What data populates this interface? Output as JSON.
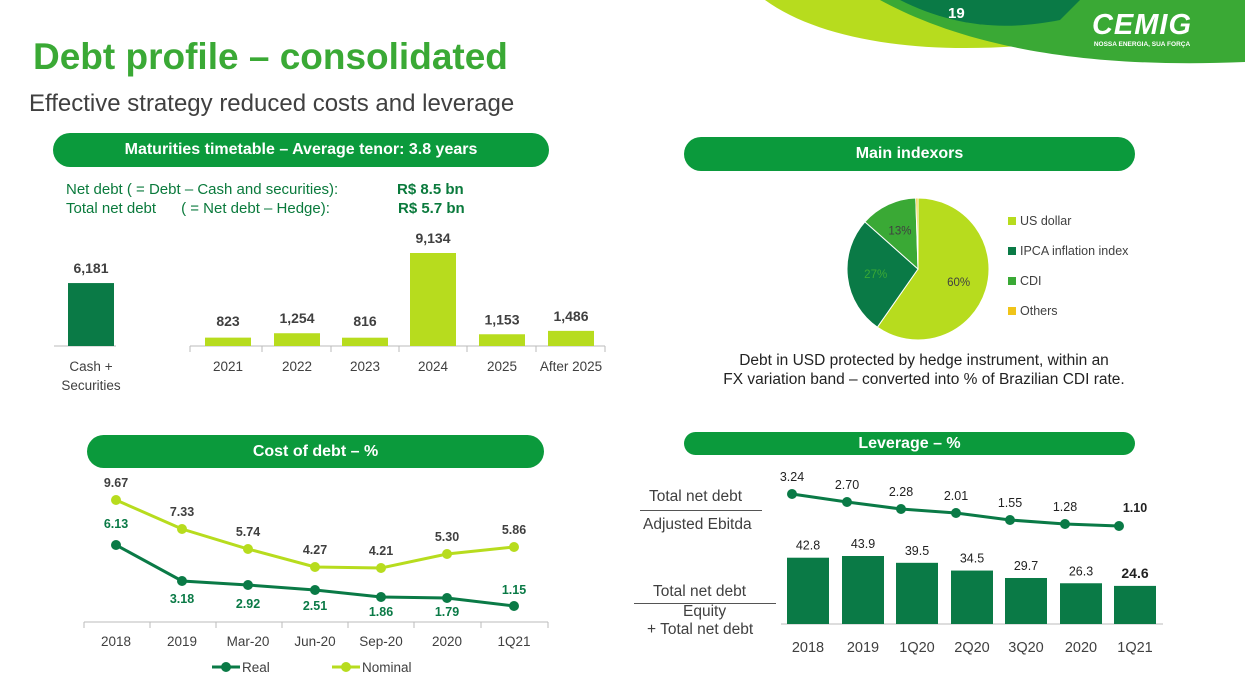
{
  "page_number": "19",
  "logo": {
    "name": "CEMIG",
    "tagline": "NOSSA ENERGIA, SUA FORÇA"
  },
  "title": "Debt profile – consolidated",
  "subtitle": "Effective strategy reduced costs and leverage",
  "colors": {
    "dark_green": "#0a7a46",
    "light_green": "#b7dc1e",
    "header_green": "#0b9a3c",
    "mid_green": "#3aa935",
    "yellow": "#f0c419"
  },
  "maturities": {
    "header": "Maturities timetable – Average tenor: 3.8 years",
    "net_debt_label": "Net debt ( = Debt – Cash and securities):",
    "net_debt_value": "R$ 8.5 bn",
    "total_net_debt_label": "Total net debt      ( = Net debt – Hedge):",
    "total_net_debt_value": "R$ 5.7 bn"
  },
  "indexors": {
    "header": "Main indexors",
    "note_line1": "Debt in USD protected by hedge instrument, within an",
    "note_line2": "FX variation band – converted into % of Brazilian CDI rate."
  },
  "cost": {
    "header": "Cost of debt – %"
  },
  "leverage": {
    "header": "Leverage – %",
    "ratio1_numerator": "Total net debt",
    "ratio1_denominator": "Adjusted Ebitda",
    "ratio2_numerator": "Total net debt",
    "ratio2_denominator_line1": "Equity",
    "ratio2_denominator_line2": "+ Total net debt"
  },
  "chart_data": [
    {
      "id": "maturities",
      "type": "bar",
      "categories": [
        "Cash + Securities",
        "2021",
        "2022",
        "2023",
        "2024",
        "2025",
        "After 2025"
      ],
      "values": [
        6181,
        823,
        1254,
        816,
        9134,
        1153,
        1486
      ],
      "value_labels": [
        "6,181",
        "823",
        "1,254",
        "816",
        "9,134",
        "1,153",
        "1,486"
      ],
      "category_labels": [
        [
          "Cash +",
          "Securities"
        ],
        [
          "2021"
        ],
        [
          "2022"
        ],
        [
          "2023"
        ],
        [
          "2024"
        ],
        [
          "2025"
        ],
        [
          "After 2025"
        ]
      ],
      "colors": [
        "#0a7a46",
        "#b7dc1e",
        "#b7dc1e",
        "#b7dc1e",
        "#b7dc1e",
        "#b7dc1e",
        "#b7dc1e"
      ]
    },
    {
      "id": "indexors",
      "type": "pie",
      "labels": [
        "US dollar",
        "IPCA inflation index",
        "CDI",
        "Others"
      ],
      "values": [
        60,
        27,
        13,
        0.5
      ],
      "slice_labels": [
        "60%",
        "27%",
        "13%",
        ""
      ],
      "colors": [
        "#b7dc1e",
        "#0a7a46",
        "#3aa935",
        "#f0c419"
      ],
      "legend": "right"
    },
    {
      "id": "cost_of_debt",
      "type": "line",
      "categories": [
        "2018",
        "2019",
        "Mar-20",
        "Jun-20",
        "Sep-20",
        "2020",
        "1Q21"
      ],
      "series": [
        {
          "name": "Real",
          "values": [
            6.13,
            3.18,
            2.92,
            2.51,
            1.86,
            1.79,
            1.15
          ],
          "labels": [
            "6.13",
            "3.18",
            "2.92",
            "2.51",
            "1.86",
            "1.79",
            "1.15"
          ],
          "color": "#0a7a46"
        },
        {
          "name": "Nominal",
          "values": [
            9.67,
            7.33,
            5.74,
            4.27,
            4.21,
            5.3,
            5.86
          ],
          "labels": [
            "9.67",
            "7.33",
            "5.74",
            "4.27",
            "4.21",
            "5.30",
            "5.86"
          ],
          "color": "#b7dc1e"
        }
      ],
      "legend": "bottom"
    },
    {
      "id": "leverage",
      "type": "bar",
      "categories": [
        "2018",
        "2019",
        "1Q20",
        "2Q20",
        "3Q20",
        "2020",
        "1Q21"
      ],
      "series": [
        {
          "name": "Total net debt / (Equity + Total net debt)",
          "values": [
            42.8,
            43.9,
            39.5,
            34.5,
            29.7,
            26.3,
            24.6
          ],
          "labels": [
            "42.8",
            "43.9",
            "39.5",
            "34.5",
            "29.7",
            "26.3",
            "24.6"
          ],
          "color": "#0a7a46"
        },
        {
          "name": "Total net debt / Adjusted Ebitda",
          "type": "line",
          "values": [
            3.24,
            2.7,
            2.28,
            2.01,
            1.55,
            1.28,
            1.1
          ],
          "labels": [
            "3.24",
            "2.70",
            "2.28",
            "2.01",
            "1.55",
            "1.28",
            "1.10"
          ],
          "color": "#0a7a46"
        }
      ]
    }
  ]
}
